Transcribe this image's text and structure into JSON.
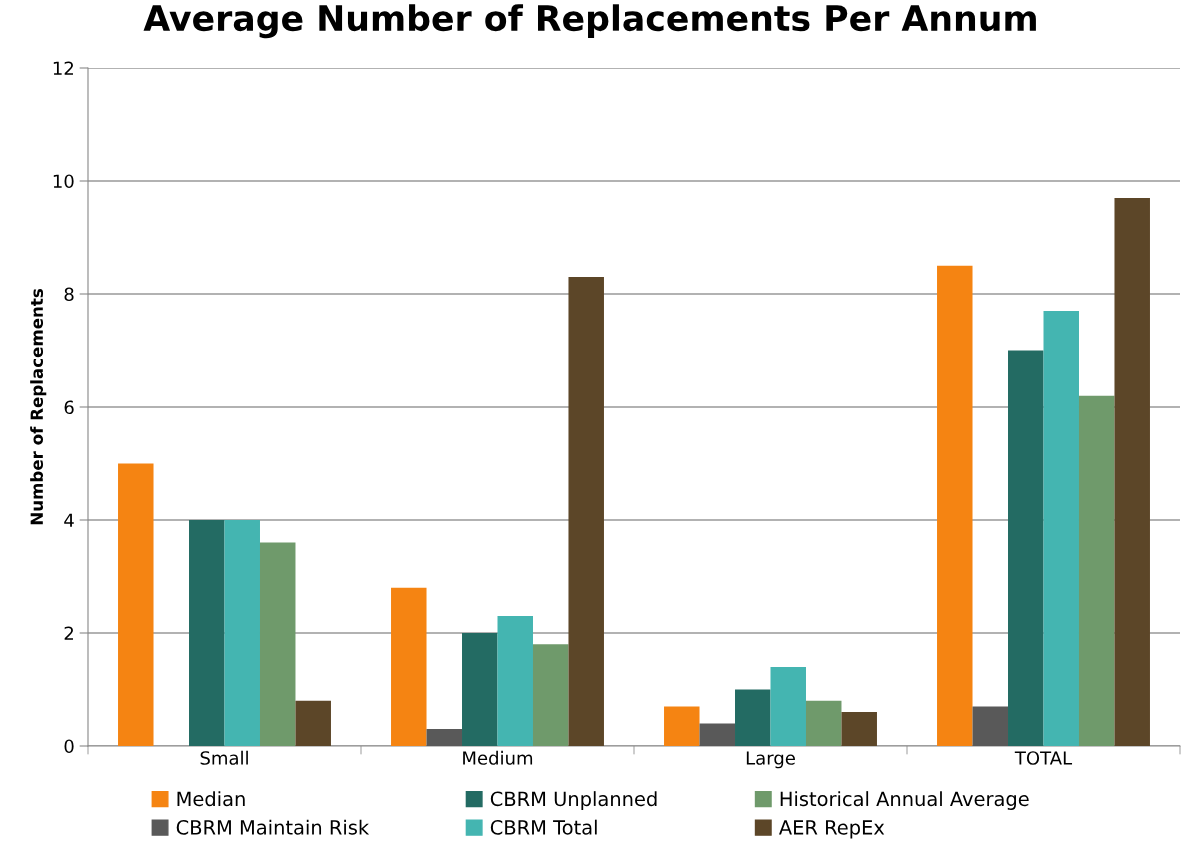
{
  "chart_data": {
    "type": "bar",
    "title": "Average Number of Replacements Per Annum",
    "ylabel": "Number of Replacements",
    "categories": [
      "Small",
      "Medium",
      "Large",
      "TOTAL"
    ],
    "series": [
      {
        "name": "Median",
        "color": "#f58412",
        "values": [
          5,
          2.8,
          0.7,
          8.5
        ]
      },
      {
        "name": "CBRM Maintain Risk",
        "color": "#595959",
        "values": [
          0,
          0.3,
          0.4,
          0.7
        ]
      },
      {
        "name": "CBRM Unplanned",
        "color": "#236b63",
        "values": [
          4,
          2,
          1,
          7
        ]
      },
      {
        "name": "CBRM Total",
        "color": "#44b5b1",
        "values": [
          4,
          2.3,
          1.4,
          7.7
        ]
      },
      {
        "name": "Historical Annual Average",
        "color": "#6f9a6b",
        "values": [
          3.6,
          1.8,
          0.8,
          6.2
        ]
      },
      {
        "name": "AER RepEx",
        "color": "#5c4628",
        "values": [
          0.8,
          8.3,
          0.6,
          9.7
        ]
      }
    ],
    "ylim": [
      0,
      12
    ],
    "yticks": [
      0,
      2,
      4,
      6,
      8,
      10,
      12
    ],
    "grid": "y",
    "legend": "bottom"
  }
}
